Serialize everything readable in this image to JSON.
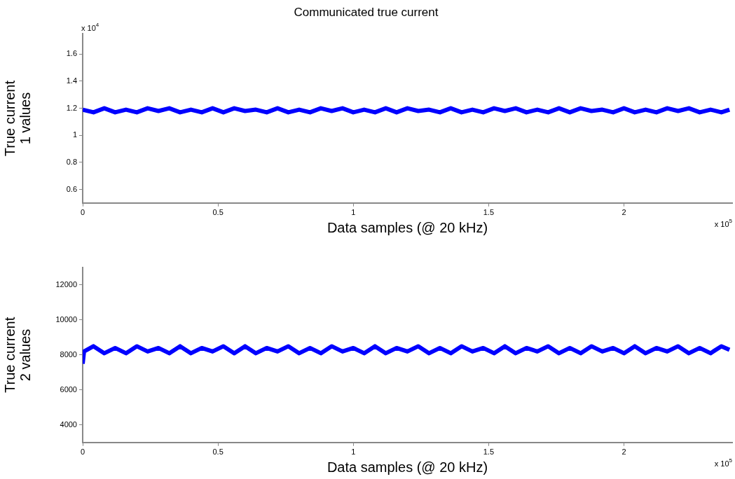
{
  "chart_data": [
    {
      "type": "line",
      "title": "Communicated true current",
      "xlabel": "Data samples (@ 20 kHz)",
      "ylabel": "True current 1 values",
      "annotations": [
        "x 10$^{4}$",
        "x 10$^{5}$"
      ],
      "x": [
        0,
        0.04,
        0.08,
        0.12,
        0.16,
        0.2,
        0.24,
        0.28,
        0.32,
        0.36,
        0.4,
        0.44,
        0.48,
        0.52,
        0.56,
        0.6,
        0.64,
        0.68,
        0.72,
        0.76,
        0.8,
        0.84,
        0.88,
        0.92,
        0.96,
        1,
        1.04,
        1.08,
        1.12,
        1.16,
        1.2,
        1.24,
        1.28,
        1.32,
        1.36,
        1.4,
        1.44,
        1.48,
        1.52,
        1.56,
        1.6,
        1.64,
        1.68,
        1.72,
        1.76,
        1.8,
        1.84,
        1.88,
        1.92,
        1.96,
        2,
        2.04,
        2.08,
        2.12,
        2.16,
        2.2,
        2.24,
        2.28,
        2.32,
        2.36,
        2.39
      ],
      "series": [
        {
          "color": "#0000ff",
          "values": [
            1.19,
            1.17,
            1.2,
            1.17,
            1.19,
            1.17,
            1.2,
            1.18,
            1.2,
            1.17,
            1.19,
            1.17,
            1.2,
            1.17,
            1.2,
            1.18,
            1.19,
            1.17,
            1.2,
            1.17,
            1.19,
            1.17,
            1.2,
            1.18,
            1.2,
            1.17,
            1.19,
            1.17,
            1.2,
            1.17,
            1.2,
            1.18,
            1.19,
            1.17,
            1.2,
            1.17,
            1.19,
            1.17,
            1.2,
            1.18,
            1.2,
            1.17,
            1.19,
            1.17,
            1.2,
            1.17,
            1.2,
            1.18,
            1.19,
            1.17,
            1.2,
            1.17,
            1.19,
            1.17,
            1.2,
            1.18,
            1.2,
            1.17,
            1.19,
            1.17,
            1.19
          ]
        }
      ],
      "xlim": [
        0,
        2.4
      ],
      "xticks": [
        0,
        0.5,
        1,
        1.5,
        2
      ],
      "ylim": [
        0.5,
        1.75
      ],
      "yticks": [
        0.6,
        0.8,
        1,
        1.2,
        1.4,
        1.6
      ],
      "grid": false,
      "legend": false,
      "line_style": "solid",
      "marker": "none"
    },
    {
      "type": "line",
      "xlabel": "Data samples (@ 20 kHz)",
      "ylabel": "True current 2 values",
      "annotations": [
        "x 10$^{5}$"
      ],
      "x": [
        0,
        0.005,
        0.04,
        0.08,
        0.12,
        0.16,
        0.2,
        0.24,
        0.28,
        0.32,
        0.36,
        0.4,
        0.44,
        0.48,
        0.52,
        0.56,
        0.6,
        0.64,
        0.68,
        0.72,
        0.76,
        0.8,
        0.84,
        0.88,
        0.92,
        0.96,
        1,
        1.04,
        1.08,
        1.12,
        1.16,
        1.2,
        1.24,
        1.28,
        1.32,
        1.36,
        1.4,
        1.44,
        1.48,
        1.52,
        1.56,
        1.6,
        1.64,
        1.68,
        1.72,
        1.76,
        1.8,
        1.84,
        1.88,
        1.92,
        1.96,
        2,
        2.04,
        2.08,
        2.12,
        2.16,
        2.2,
        2.24,
        2.28,
        2.32,
        2.36,
        2.39
      ],
      "series": [
        {
          "color": "#0000ff",
          "values": [
            7500,
            8200,
            8500,
            8100,
            8400,
            8100,
            8500,
            8200,
            8400,
            8100,
            8500,
            8100,
            8400,
            8200,
            8500,
            8100,
            8500,
            8100,
            8400,
            8200,
            8500,
            8100,
            8400,
            8100,
            8500,
            8200,
            8400,
            8100,
            8500,
            8100,
            8400,
            8200,
            8500,
            8100,
            8400,
            8100,
            8500,
            8200,
            8400,
            8100,
            8500,
            8100,
            8400,
            8200,
            8500,
            8100,
            8400,
            8100,
            8500,
            8200,
            8400,
            8100,
            8500,
            8100,
            8400,
            8200,
            8500,
            8100,
            8400,
            8100,
            8500,
            8300
          ]
        }
      ],
      "xlim": [
        0,
        2.4
      ],
      "xticks": [
        0,
        0.5,
        1,
        1.5,
        2
      ],
      "ylim": [
        3000,
        13000
      ],
      "yticks": [
        4000,
        6000,
        8000,
        10000,
        12000
      ],
      "grid": false,
      "legend": false,
      "line_style": "solid",
      "marker": "none"
    }
  ]
}
